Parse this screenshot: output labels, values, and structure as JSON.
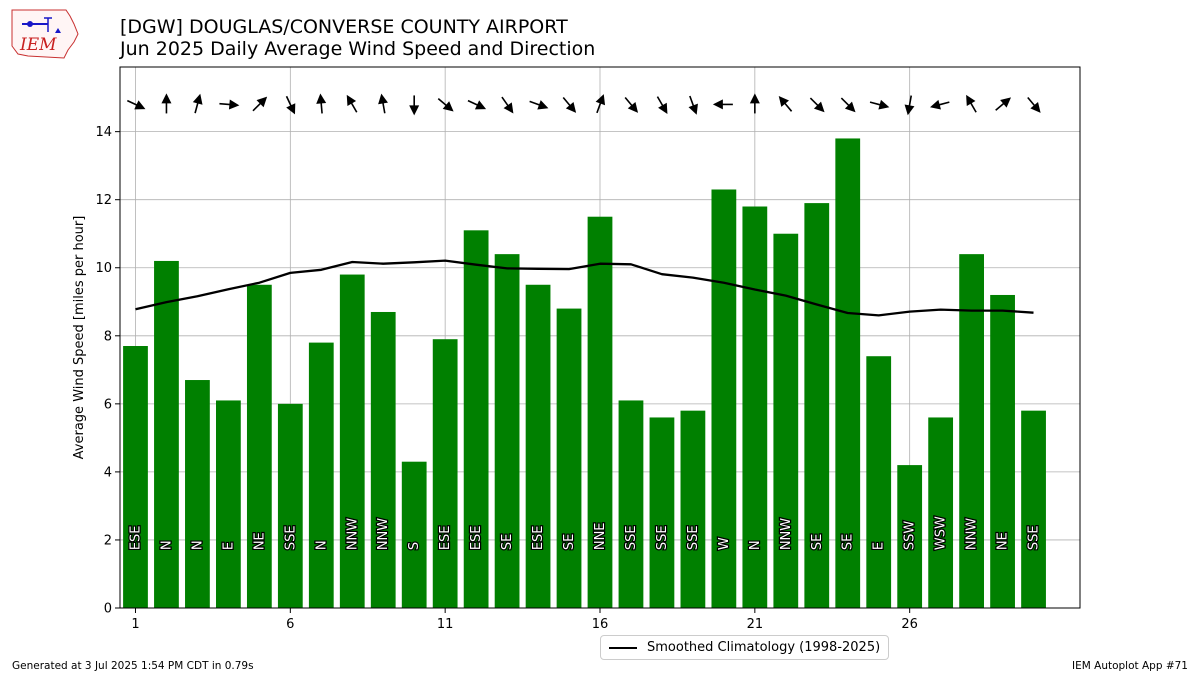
{
  "logo": {
    "text": "IEM"
  },
  "header": {
    "title": "[DGW] DOUGLAS/CONVERSE COUNTY AIRPORT",
    "subtitle": "Jun 2025 Daily Average Wind Speed and Direction"
  },
  "colors": {
    "bar": "#008000",
    "line": "#000000",
    "grid": "#b0b0b0",
    "arrow": "#000000"
  },
  "chart_data": {
    "type": "bar",
    "title": "[DGW] DOUGLAS/CONVERSE COUNTY AIRPORT",
    "subtitle": "Jun 2025 Daily Average Wind Speed and Direction",
    "xlabel": "",
    "ylabel": "Average Wind Speed [miles per hour]",
    "xlim": [
      0.5,
      31.5
    ],
    "ylim": [
      0,
      15.9
    ],
    "xticks": [
      1,
      6,
      11,
      16,
      21,
      26
    ],
    "yticks": [
      0,
      2,
      4,
      6,
      8,
      10,
      12,
      14
    ],
    "grid": true,
    "legend_position": "bottom-center",
    "days": [
      1,
      2,
      3,
      4,
      5,
      6,
      7,
      8,
      9,
      10,
      11,
      12,
      13,
      14,
      15,
      16,
      17,
      18,
      19,
      20,
      21,
      22,
      23,
      24,
      25,
      26,
      27,
      28,
      29,
      30
    ],
    "speed": [
      7.7,
      10.2,
      6.7,
      6.1,
      9.5,
      6.0,
      7.8,
      9.8,
      8.7,
      4.3,
      7.9,
      11.1,
      10.4,
      9.5,
      8.8,
      11.5,
      6.1,
      5.6,
      5.8,
      12.3,
      11.8,
      11.0,
      11.9,
      13.8,
      7.4,
      4.2,
      5.6,
      10.4,
      9.2,
      5.8
    ],
    "direction_labels": [
      "ESE",
      "N",
      "N",
      "E",
      "NE",
      "SSE",
      "N",
      "NNW",
      "NNW",
      "S",
      "ESE",
      "ESE",
      "SE",
      "ESE",
      "SE",
      "NNE",
      "SSE",
      "SSE",
      "SSE",
      "W",
      "N",
      "NNW",
      "SE",
      "SE",
      "E",
      "SSW",
      "WSW",
      "NNW",
      "NE",
      "SSE"
    ],
    "arrow_bearing_deg": [
      295,
      180,
      195,
      275,
      225,
      335,
      175,
      150,
      170,
      0,
      310,
      295,
      325,
      290,
      320,
      200,
      320,
      330,
      340,
      90,
      180,
      140,
      315,
      315,
      285,
      10,
      75,
      150,
      230,
      320
    ],
    "series": [
      {
        "name": "Smoothed Climatology (1998-2025)",
        "type": "line",
        "values": [
          8.78,
          8.99,
          9.16,
          9.37,
          9.56,
          9.85,
          9.94,
          10.17,
          10.12,
          10.16,
          10.21,
          10.09,
          9.98,
          9.97,
          9.96,
          10.12,
          10.1,
          9.81,
          9.71,
          9.56,
          9.36,
          9.18,
          8.92,
          8.67,
          8.6,
          8.71,
          8.77,
          8.74,
          8.74,
          8.68
        ]
      }
    ]
  },
  "legend": {
    "label": "Smoothed Climatology (1998-2025)"
  },
  "footer": {
    "left": "Generated at 3 Jul 2025 1:54 PM CDT in 0.79s",
    "right": "IEM Autoplot App #71"
  }
}
